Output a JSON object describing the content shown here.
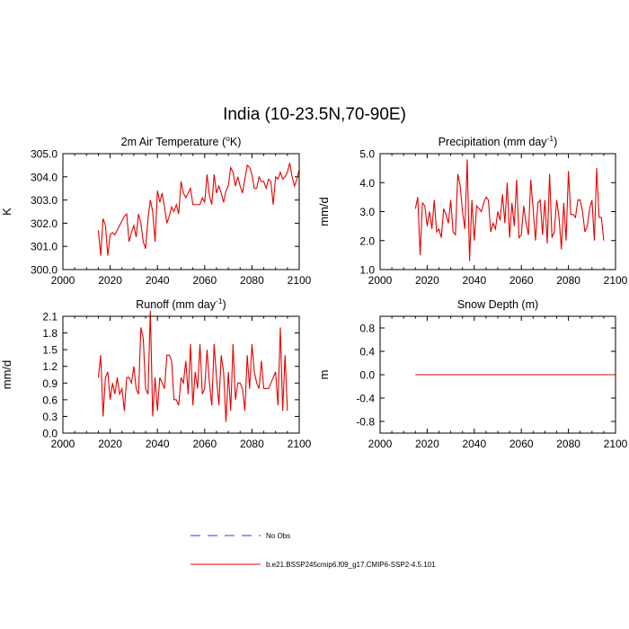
{
  "figure": {
    "title": "India (10-23.5N,70-90E)"
  },
  "legend": {
    "items": [
      {
        "label": "No Obs",
        "color": "#3333ff",
        "style": "dashed"
      },
      {
        "label": "b.e21.BSSP245cmip6.f09_g17.CMIP6-SSP2-4.5.101",
        "color": "#e60000",
        "style": "solid"
      }
    ]
  },
  "colors": {
    "series": "#e60000",
    "obs": "#3333ff"
  },
  "chart_data": [
    {
      "type": "line",
      "title_main": "2m Air Temperature (",
      "title_sup": "o",
      "title_end": "K)",
      "ylabel": "K",
      "xlim": [
        2000,
        2100
      ],
      "ylim": [
        300.0,
        305.0
      ],
      "xticks": [
        "2000",
        "2020",
        "2040",
        "2060",
        "2080",
        "2100"
      ],
      "yticks": [
        "300.0",
        "301.0",
        "302.0",
        "303.0",
        "304.0",
        "305.0"
      ],
      "series": [
        {
          "name": "b.e21.BSSP245cmip6.f09_g17.CMIP6-SSP2-4.5.101",
          "x_start": 2015,
          "x_step": 1,
          "values": [
            301.7,
            300.6,
            302.2,
            301.9,
            300.6,
            301.5,
            301.6,
            301.5,
            301.7,
            301.9,
            302.1,
            302.3,
            302.4,
            301.2,
            301.6,
            301.9,
            301.4,
            302.4,
            302.0,
            301.2,
            300.9,
            302.2,
            303.0,
            302.5,
            301.2,
            303.4,
            302.9,
            303.3,
            302.7,
            302.0,
            302.3,
            302.7,
            302.5,
            302.8,
            302.4,
            303.8,
            303.3,
            303.1,
            303.3,
            303.5,
            302.8,
            302.8,
            302.8,
            302.8,
            303.1,
            302.9,
            304.1,
            303.2,
            302.8,
            304.1,
            303.3,
            303.6,
            303.3,
            302.9,
            303.4,
            303.6,
            304.4,
            304.2,
            303.6,
            304.0,
            303.6,
            303.3,
            303.9,
            304.5,
            304.4,
            304.1,
            303.5,
            303.5,
            304.0,
            303.8,
            303.8,
            303.5,
            303.9,
            303.8,
            302.8,
            304.0,
            303.9,
            304.2,
            303.9,
            304.0,
            304.2,
            304.6,
            304.0,
            303.6,
            303.9,
            304.3
          ]
        }
      ]
    },
    {
      "type": "line",
      "title_main": "Precipitation (mm day",
      "title_sup": "-1",
      "title_end": ")",
      "ylabel": "mm/d",
      "xlim": [
        2000,
        2100
      ],
      "ylim": [
        1.0,
        5.0
      ],
      "xticks": [
        "2000",
        "2020",
        "2040",
        "2060",
        "2080",
        "2100"
      ],
      "yticks": [
        "1.0",
        "2.0",
        "3.0",
        "4.0",
        "5.0"
      ],
      "series": [
        {
          "name": "b.e21.BSSP245cmip6.f09_g17.CMIP6-SSP2-4.5.101",
          "x_start": 2015,
          "x_step": 1,
          "values": [
            3.1,
            3.5,
            1.5,
            3.3,
            3.2,
            2.5,
            3.0,
            2.4,
            3.4,
            2.3,
            2.4,
            2.1,
            3.1,
            2.9,
            2.6,
            3.4,
            2.3,
            2.2,
            4.3,
            3.9,
            3.0,
            2.4,
            4.8,
            1.3,
            3.4,
            2.0,
            3.2,
            3.1,
            3.0,
            3.3,
            3.5,
            3.4,
            2.3,
            2.6,
            2.4,
            3.0,
            2.7,
            3.6,
            2.6,
            4.0,
            2.1,
            3.3,
            2.5,
            4.1,
            2.1,
            2.2,
            3.2,
            2.6,
            2.2,
            4.1,
            3.1,
            2.0,
            3.3,
            3.4,
            2.2,
            3.4,
            1.9,
            4.3,
            2.1,
            2.3,
            3.4,
            2.8,
            1.7,
            3.3,
            2.0,
            4.4,
            2.9,
            2.9,
            2.8,
            3.4,
            3.4,
            3.0,
            2.3,
            2.5,
            3.1,
            3.4,
            2.0,
            4.5,
            2.8,
            2.8,
            2.0
          ]
        }
      ]
    },
    {
      "type": "line",
      "title_main": "Runoff (mm day",
      "title_sup": "-1",
      "title_end": ")",
      "ylabel": "mm/d",
      "xlim": [
        2000,
        2100
      ],
      "ylim": [
        0.0,
        2.1
      ],
      "xticks": [
        "2000",
        "2020",
        "2040",
        "2060",
        "2080",
        "2100"
      ],
      "yticks": [
        "0.0",
        "0.3",
        "0.6",
        "0.9",
        "1.2",
        "1.5",
        "1.8",
        "2.1"
      ],
      "series": [
        {
          "name": "b.e21.BSSP245cmip6.f09_g17.CMIP6-SSP2-4.5.101",
          "x_start": 2015,
          "x_step": 1,
          "values": [
            1.0,
            1.4,
            0.3,
            1.0,
            1.1,
            0.6,
            0.9,
            0.7,
            1.0,
            0.7,
            0.8,
            0.4,
            1.0,
            1.0,
            0.9,
            1.2,
            0.8,
            0.7,
            1.9,
            1.7,
            0.8,
            0.7,
            2.2,
            0.3,
            1.0,
            0.4,
            1.0,
            0.9,
            0.8,
            1.4,
            1.4,
            1.3,
            0.6,
            0.6,
            0.5,
            1.0,
            0.9,
            1.3,
            0.7,
            1.6,
            0.5,
            1.1,
            0.8,
            1.6,
            0.7,
            0.8,
            1.5,
            0.9,
            0.5,
            1.6,
            1.0,
            0.5,
            1.4,
            1.1,
            0.2,
            1.1,
            0.4,
            1.6,
            0.6,
            0.9,
            0.9,
            0.8,
            0.4,
            1.4,
            0.8,
            1.6,
            1.1,
            0.9,
            0.8,
            1.3,
            0.8,
            0.8,
            0.8,
            0.9,
            1.0,
            1.1,
            0.5,
            1.9,
            0.4,
            1.4,
            0.4
          ]
        }
      ]
    },
    {
      "type": "line",
      "title_main": "Snow Depth (m)",
      "title_sup": "",
      "title_end": "",
      "ylabel": "m",
      "xlim": [
        2000,
        2100
      ],
      "ylim": [
        -1.0,
        1.0
      ],
      "xticks": [
        "2000",
        "2020",
        "2040",
        "2060",
        "2080",
        "2100"
      ],
      "yticks": [
        "-0.8",
        "-0.4",
        "0.0",
        "0.4",
        "0.8"
      ],
      "ytick_values": [
        -0.8,
        -0.4,
        0.0,
        0.4,
        0.8
      ],
      "series": [
        {
          "name": "b.e21.BSSP245cmip6.f09_g17.CMIP6-SSP2-4.5.101",
          "x_start": 2015,
          "x_step": 1,
          "constant": 0.0,
          "count": 86
        }
      ]
    }
  ]
}
